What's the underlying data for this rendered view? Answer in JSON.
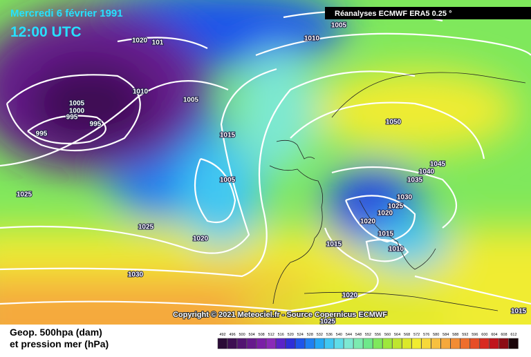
{
  "header": {
    "date": "Mercredi 6 février 1991",
    "time": "12:00 UTC",
    "source": "Réanalyses ECMWF ERA5 0.25 °"
  },
  "copyright": "Copyright © 2021 Meteociel.fr - Source Copernicus ECMWF",
  "isobar_labels": [
    "1005",
    "1010",
    "1020",
    "101",
    "1010",
    "1005",
    "1005",
    "1000",
    "995",
    "995",
    "995",
    "1015",
    "1050",
    "1045",
    "1040",
    "1035",
    "1005",
    "1025",
    "1030",
    "1025",
    "1020",
    "1020",
    "1015",
    "1010",
    "1025",
    "1020",
    "1015",
    "1030",
    "1020",
    "1025",
    "1015"
  ],
  "legend": {
    "title_line1": "Geop. 500hpa (dam)",
    "title_line2": "et pression mer (hPa)",
    "values": [
      492,
      496,
      500,
      504,
      508,
      512,
      516,
      520,
      524,
      528,
      532,
      536,
      540,
      544,
      548,
      552,
      556,
      560,
      564,
      568,
      572,
      576,
      580,
      584,
      588,
      592,
      596,
      600,
      604,
      608,
      612
    ],
    "colors": [
      "#2a0b36",
      "#3d0f52",
      "#521571",
      "#661a8c",
      "#7a1fa6",
      "#8a2ab8",
      "#5a24c8",
      "#2e2fd8",
      "#1f55ea",
      "#1f80f2",
      "#24a8f5",
      "#3fc7f2",
      "#5fdce8",
      "#7de8d2",
      "#7cebb0",
      "#6ee88a",
      "#7fe85c",
      "#9ee83c",
      "#bfe52e",
      "#dbe82a",
      "#f0ec30",
      "#f6d83a",
      "#f7c040",
      "#f5a83c",
      "#f28c34",
      "#ee6e2c",
      "#e64e26",
      "#d82a20",
      "#c0141c",
      "#8c0c14",
      "#1a0408"
    ]
  }
}
